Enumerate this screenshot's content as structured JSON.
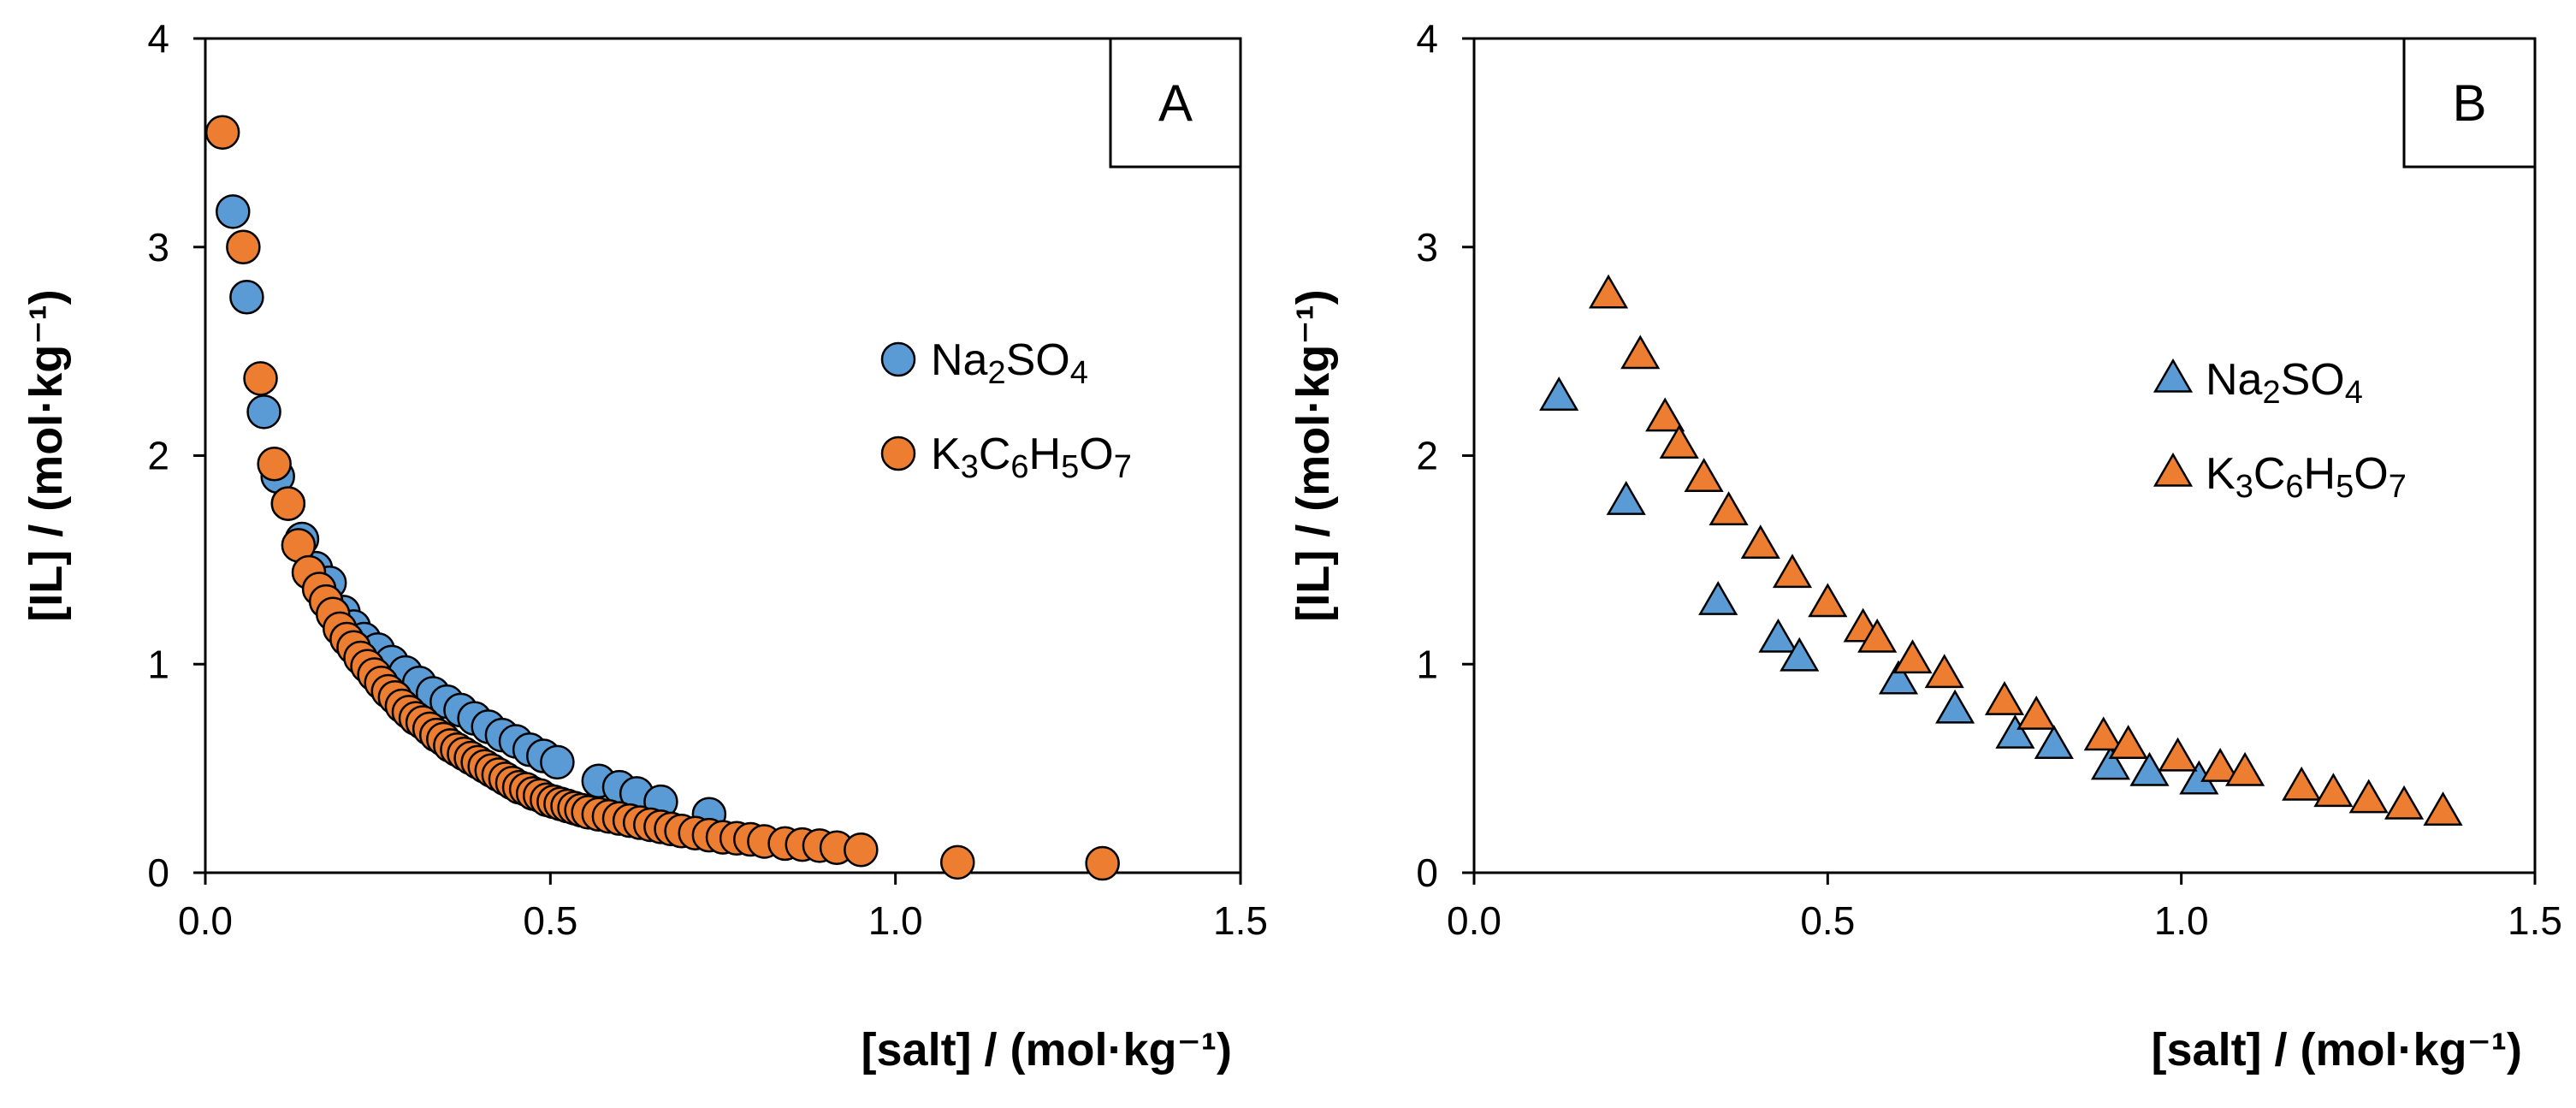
{
  "chart_data": [
    {
      "panel": "A",
      "type": "scatter",
      "marker": "circle",
      "xlabel": "[salt] / (mol·kg⁻¹)",
      "ylabel": "[IL] / (mol·kg⁻¹)",
      "xlim": [
        0,
        1.5
      ],
      "ylim": [
        0,
        4
      ],
      "xticks": [
        "0.0",
        "0.5",
        "1.0",
        "1.5"
      ],
      "yticks": [
        "0",
        "1",
        "2",
        "3",
        "4"
      ],
      "legend_position": "right-middle",
      "series": [
        {
          "name": "Na2SO4",
          "label_parts": [
            [
              "Na",
              ""
            ],
            [
              "2",
              "sub"
            ],
            [
              "SO",
              ""
            ],
            [
              "4",
              "sub"
            ]
          ],
          "color": "#5b9bd5",
          "points": [
            [
              0.04,
              3.17
            ],
            [
              0.06,
              2.76
            ],
            [
              0.085,
              2.21
            ],
            [
              0.105,
              1.9
            ],
            [
              0.12,
              1.77
            ],
            [
              0.14,
              1.6
            ],
            [
              0.16,
              1.46
            ],
            [
              0.18,
              1.39
            ],
            [
              0.2,
              1.25
            ],
            [
              0.215,
              1.18
            ],
            [
              0.23,
              1.12
            ],
            [
              0.25,
              1.07
            ],
            [
              0.27,
              1.01
            ],
            [
              0.29,
              0.96
            ],
            [
              0.31,
              0.91
            ],
            [
              0.33,
              0.86
            ],
            [
              0.35,
              0.82
            ],
            [
              0.37,
              0.78
            ],
            [
              0.39,
              0.74
            ],
            [
              0.41,
              0.7
            ],
            [
              0.43,
              0.66
            ],
            [
              0.45,
              0.63
            ],
            [
              0.47,
              0.59
            ],
            [
              0.49,
              0.56
            ],
            [
              0.51,
              0.53
            ],
            [
              0.57,
              0.44
            ],
            [
              0.6,
              0.41
            ],
            [
              0.625,
              0.38
            ],
            [
              0.66,
              0.34
            ],
            [
              0.73,
              0.28
            ]
          ]
        },
        {
          "name": "K3C6H5O7",
          "label_parts": [
            [
              "K",
              ""
            ],
            [
              "3",
              "sub"
            ],
            [
              "C",
              ""
            ],
            [
              "6",
              "sub"
            ],
            [
              "H",
              ""
            ],
            [
              "5",
              "sub"
            ],
            [
              "O",
              ""
            ],
            [
              "7",
              "sub"
            ]
          ],
          "color": "#ed7d31",
          "points": [
            [
              0.025,
              3.55
            ],
            [
              0.055,
              3.0
            ],
            [
              0.08,
              2.37
            ],
            [
              0.1,
              1.96
            ],
            [
              0.12,
              1.77
            ],
            [
              0.135,
              1.57
            ],
            [
              0.15,
              1.44
            ],
            [
              0.165,
              1.36
            ],
            [
              0.175,
              1.3
            ],
            [
              0.185,
              1.24
            ],
            [
              0.195,
              1.17
            ],
            [
              0.205,
              1.12
            ],
            [
              0.215,
              1.08
            ],
            [
              0.225,
              1.03
            ],
            [
              0.235,
              0.99
            ],
            [
              0.245,
              0.95
            ],
            [
              0.255,
              0.91
            ],
            [
              0.265,
              0.87
            ],
            [
              0.275,
              0.84
            ],
            [
              0.285,
              0.8
            ],
            [
              0.295,
              0.77
            ],
            [
              0.305,
              0.74
            ],
            [
              0.315,
              0.72
            ],
            [
              0.325,
              0.69
            ],
            [
              0.335,
              0.66
            ],
            [
              0.345,
              0.64
            ],
            [
              0.355,
              0.61
            ],
            [
              0.365,
              0.59
            ],
            [
              0.375,
              0.57
            ],
            [
              0.385,
              0.55
            ],
            [
              0.395,
              0.53
            ],
            [
              0.405,
              0.51
            ],
            [
              0.415,
              0.49
            ],
            [
              0.425,
              0.47
            ],
            [
              0.435,
              0.45
            ],
            [
              0.445,
              0.43
            ],
            [
              0.455,
              0.41
            ],
            [
              0.465,
              0.4
            ],
            [
              0.475,
              0.38
            ],
            [
              0.485,
              0.37
            ],
            [
              0.495,
              0.35
            ],
            [
              0.505,
              0.34
            ],
            [
              0.515,
              0.33
            ],
            [
              0.525,
              0.32
            ],
            [
              0.535,
              0.31
            ],
            [
              0.545,
              0.3
            ],
            [
              0.555,
              0.29
            ],
            [
              0.57,
              0.28
            ],
            [
              0.585,
              0.27
            ],
            [
              0.6,
              0.26
            ],
            [
              0.615,
              0.25
            ],
            [
              0.63,
              0.24
            ],
            [
              0.645,
              0.23
            ],
            [
              0.66,
              0.22
            ],
            [
              0.675,
              0.21
            ],
            [
              0.69,
              0.2
            ],
            [
              0.71,
              0.19
            ],
            [
              0.73,
              0.18
            ],
            [
              0.75,
              0.17
            ],
            [
              0.77,
              0.165
            ],
            [
              0.79,
              0.16
            ],
            [
              0.81,
              0.15
            ],
            [
              0.84,
              0.14
            ],
            [
              0.865,
              0.135
            ],
            [
              0.89,
              0.13
            ],
            [
              0.915,
              0.12
            ],
            [
              0.95,
              0.11
            ],
            [
              1.09,
              0.05
            ],
            [
              1.3,
              0.045
            ]
          ]
        }
      ]
    },
    {
      "panel": "B",
      "type": "scatter",
      "marker": "triangle",
      "xlabel": "[salt] / (mol·kg⁻¹)",
      "ylabel": "[IL] / (mol·kg⁻¹)",
      "xlim": [
        0,
        1.5
      ],
      "ylim": [
        0,
        4
      ],
      "xticks": [
        "0.0",
        "0.5",
        "1.0",
        "1.5"
      ],
      "yticks": [
        "0",
        "1",
        "2",
        "3",
        "4"
      ],
      "legend_position": "right-middle",
      "series": [
        {
          "name": "Na2SO4",
          "label_parts": [
            [
              "Na",
              ""
            ],
            [
              "2",
              "sub"
            ],
            [
              "SO",
              ""
            ],
            [
              "4",
              "sub"
            ]
          ],
          "color": "#5b9bd5",
          "points": [
            [
              0.12,
              2.28
            ],
            [
              0.215,
              1.78
            ],
            [
              0.345,
              1.3
            ],
            [
              0.43,
              1.12
            ],
            [
              0.46,
              1.03
            ],
            [
              0.6,
              0.92
            ],
            [
              0.68,
              0.78
            ],
            [
              0.765,
              0.66
            ],
            [
              0.82,
              0.61
            ],
            [
              0.9,
              0.51
            ],
            [
              0.955,
              0.48
            ],
            [
              1.025,
              0.44
            ]
          ]
        },
        {
          "name": "K3C6H5O7",
          "label_parts": [
            [
              "K",
              ""
            ],
            [
              "3",
              "sub"
            ],
            [
              "C",
              ""
            ],
            [
              "6",
              "sub"
            ],
            [
              "H",
              ""
            ],
            [
              "5",
              "sub"
            ],
            [
              "O",
              ""
            ],
            [
              "7",
              "sub"
            ]
          ],
          "color": "#ed7d31",
          "points": [
            [
              0.19,
              2.77
            ],
            [
              0.235,
              2.48
            ],
            [
              0.27,
              2.18
            ],
            [
              0.29,
              2.05
            ],
            [
              0.325,
              1.89
            ],
            [
              0.36,
              1.73
            ],
            [
              0.405,
              1.57
            ],
            [
              0.45,
              1.43
            ],
            [
              0.5,
              1.29
            ],
            [
              0.55,
              1.17
            ],
            [
              0.57,
              1.12
            ],
            [
              0.62,
              1.02
            ],
            [
              0.665,
              0.95
            ],
            [
              0.75,
              0.82
            ],
            [
              0.795,
              0.75
            ],
            [
              0.89,
              0.65
            ],
            [
              0.925,
              0.61
            ],
            [
              0.995,
              0.55
            ],
            [
              1.055,
              0.5
            ],
            [
              1.09,
              0.48
            ],
            [
              1.17,
              0.41
            ],
            [
              1.215,
              0.38
            ],
            [
              1.265,
              0.35
            ],
            [
              1.315,
              0.32
            ],
            [
              1.37,
              0.29
            ]
          ]
        }
      ]
    }
  ]
}
